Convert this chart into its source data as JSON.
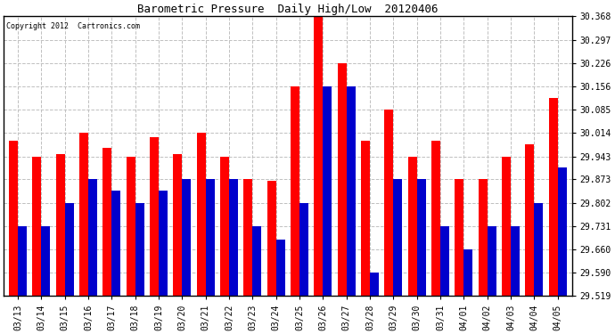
{
  "title": "Barometric Pressure  Daily High/Low  20120406",
  "copyright": "Copyright 2012  Cartronics.com",
  "dates": [
    "03/13",
    "03/14",
    "03/15",
    "03/16",
    "03/17",
    "03/18",
    "03/19",
    "03/20",
    "03/21",
    "03/22",
    "03/23",
    "03/24",
    "03/25",
    "03/26",
    "03/27",
    "03/28",
    "03/29",
    "03/30",
    "03/31",
    "04/01",
    "04/02",
    "04/03",
    "04/04",
    "04/05"
  ],
  "highs": [
    29.99,
    29.943,
    29.95,
    30.014,
    29.97,
    29.943,
    30.0,
    29.95,
    30.014,
    29.943,
    29.873,
    29.87,
    30.156,
    30.368,
    30.226,
    29.99,
    30.085,
    29.943,
    29.99,
    29.873,
    29.873,
    29.943,
    29.98,
    30.12
  ],
  "lows": [
    29.731,
    29.731,
    29.802,
    29.873,
    29.84,
    29.802,
    29.84,
    29.873,
    29.873,
    29.873,
    29.731,
    29.69,
    29.802,
    30.156,
    30.156,
    29.59,
    29.873,
    29.873,
    29.731,
    29.66,
    29.731,
    29.731,
    29.802,
    29.91
  ],
  "high_color": "#ff0000",
  "low_color": "#0000cc",
  "bg_color": "#ffffff",
  "grid_color": "#c0c0c0",
  "yticks": [
    29.519,
    29.59,
    29.66,
    29.731,
    29.802,
    29.873,
    29.943,
    30.014,
    30.085,
    30.156,
    30.226,
    30.297,
    30.368
  ],
  "ymin": 29.519,
  "ymax": 30.368,
  "bar_width": 0.38
}
